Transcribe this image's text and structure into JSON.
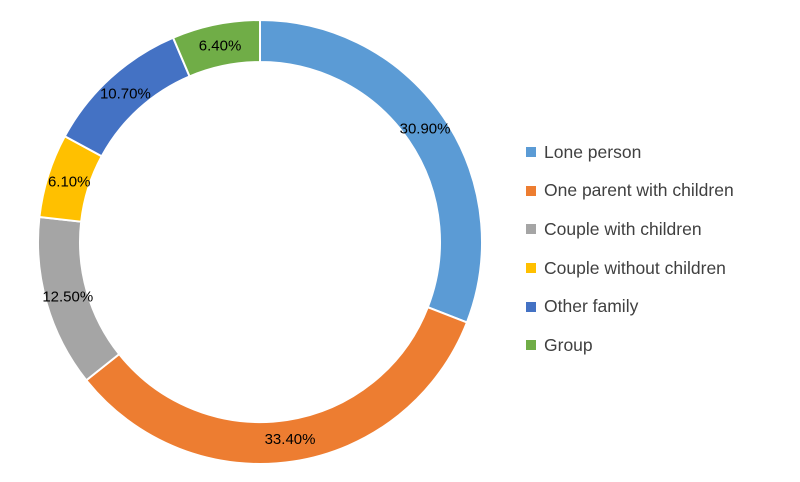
{
  "chart_data": {
    "type": "pie",
    "variant": "donut",
    "title": "",
    "start": "top, clockwise",
    "legend_position": "right",
    "unit": "%",
    "categories": [
      "Lone person",
      "One parent with children",
      "Couple with children",
      "Couple without children",
      "Other family",
      "Group"
    ],
    "values": [
      30.9,
      33.4,
      12.5,
      6.1,
      10.7,
      6.4
    ],
    "labels": [
      "30.90%",
      "33.40%",
      "12.50%",
      "6.10%",
      "10.70%",
      "6.40%"
    ],
    "colors": [
      "#5B9BD5",
      "#ED7D31",
      "#A5A5A5",
      "#FFC000",
      "#4472C4",
      "#70AD47"
    ]
  }
}
